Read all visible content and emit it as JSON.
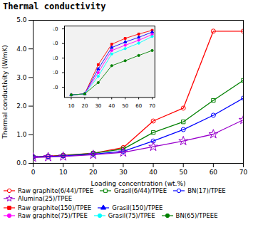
{
  "chart_data": [
    {
      "type": "line",
      "title": "Thermal conductivity",
      "xlabel": "Loading concentration (wt.%)",
      "ylabel": "Thermal conductivity (W/mK)",
      "x": [
        0,
        5,
        10,
        20,
        30,
        40,
        50,
        60,
        70
      ],
      "xlim": [
        0,
        70
      ],
      "ylim": [
        0,
        5
      ],
      "xticks": [
        0,
        10,
        20,
        30,
        40,
        50,
        60,
        70
      ],
      "yticks": [
        0,
        1,
        2,
        3,
        4,
        5
      ],
      "series": [
        {
          "name": "Raw graphite(6/44)/TPEE",
          "color": "red",
          "marker": "circle",
          "values": [
            0.22,
            0.25,
            0.28,
            0.35,
            0.55,
            1.48,
            1.93,
            4.62,
            4.62
          ]
        },
        {
          "name": "Grasil(6/44)/TPEE",
          "color": "green",
          "marker": "square",
          "values": [
            0.22,
            0.24,
            0.27,
            0.35,
            0.5,
            1.08,
            1.45,
            2.2,
            2.9
          ]
        },
        {
          "name": "BN(17)/TPEE",
          "color": "blue",
          "marker": "circle",
          "values": [
            0.22,
            0.24,
            0.26,
            0.32,
            0.42,
            0.78,
            1.18,
            1.68,
            2.28
          ]
        },
        {
          "name": "Alumina(25)/TPEE",
          "color": "#9900CC",
          "marker": "star",
          "values": [
            0.2,
            0.22,
            0.24,
            0.3,
            0.38,
            0.58,
            0.78,
            1.02,
            1.52
          ]
        }
      ]
    },
    {
      "type": "line",
      "x": [
        10,
        20,
        30,
        40,
        50,
        60,
        70
      ],
      "xlim": [
        5,
        72
      ],
      "ylim": [
        0.3,
        5.2
      ],
      "xticks": [
        10,
        20,
        30,
        40,
        50,
        60,
        70
      ],
      "yticks": [
        1,
        2,
        3,
        4,
        5
      ],
      "series": [
        {
          "name": "Raw graphite(150)/TPEE",
          "color": "red",
          "marker": "square",
          "values": [
            0.48,
            0.55,
            2.55,
            3.95,
            4.35,
            4.65,
            4.9
          ]
        },
        {
          "name": "Grasil(150)/TPEE",
          "color": "blue",
          "marker": "triangle",
          "values": [
            0.48,
            0.55,
            2.25,
            3.72,
            4.1,
            4.42,
            4.78
          ]
        },
        {
          "name": "Raw graphite(75)/TPEE",
          "color": "#FF00FF",
          "marker": "circle",
          "values": [
            0.48,
            0.55,
            2.0,
            3.52,
            3.88,
            4.22,
            4.62
          ]
        },
        {
          "name": "Grasil(75)/TPEE",
          "color": "cyan",
          "marker": "circle",
          "values": [
            0.48,
            0.55,
            1.75,
            3.28,
            3.65,
            4.02,
            4.48
          ]
        },
        {
          "name": "BN(65)/TPEEE",
          "color": "green",
          "marker": "circle",
          "values": [
            0.48,
            0.55,
            1.32,
            2.48,
            2.82,
            3.18,
            3.52
          ]
        }
      ]
    }
  ]
}
